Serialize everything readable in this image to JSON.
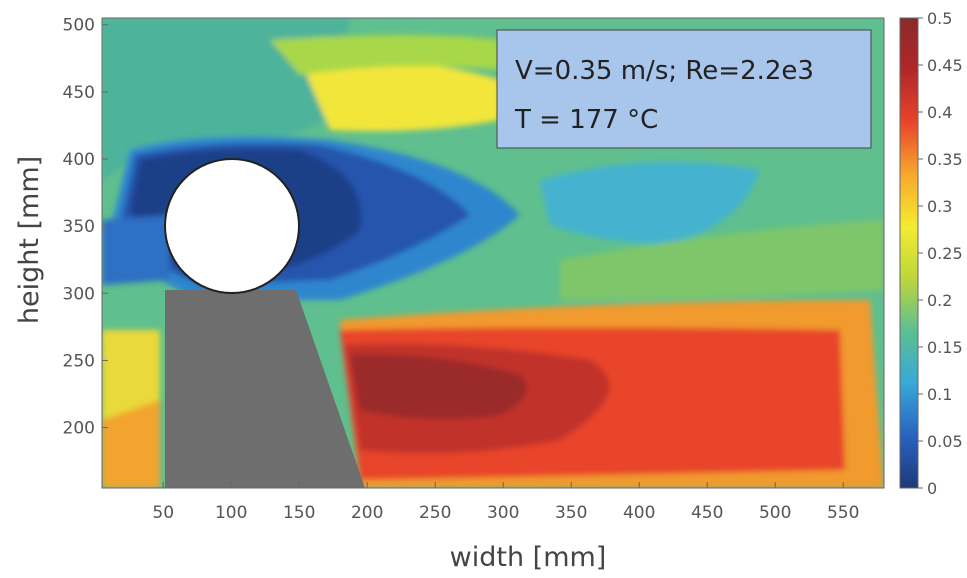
{
  "chart_data": {
    "type": "heatmap",
    "xlabel": "width [mm]",
    "ylabel": "height [mm]",
    "xlim": [
      5,
      580
    ],
    "ylim": [
      155,
      505
    ],
    "x_ticks": [
      50,
      100,
      150,
      200,
      250,
      300,
      350,
      400,
      450,
      500,
      550
    ],
    "y_ticks": [
      200,
      250,
      300,
      350,
      400,
      450,
      500
    ],
    "colorbar": {
      "range": [
        0,
        0.5
      ],
      "ticks": [
        0,
        0.05,
        0.1,
        0.15,
        0.2,
        0.25,
        0.3,
        0.35,
        0.4,
        0.45,
        0.5
      ],
      "colormap": [
        "#1e3a78",
        "#2a62c0",
        "#38a8d8",
        "#5bbf92",
        "#bcd63c",
        "#f4ec30",
        "#f7a92c",
        "#e8452a",
        "#b1262a",
        "#8a2a2a"
      ]
    },
    "annotation": {
      "line1": "V=0.35 m/s; Re=2.2e3",
      "line2": "T = 177 °C"
    },
    "field_regions": [
      {
        "region": "wake behind cylinder (upper)",
        "x": [
          60,
          300
        ],
        "y": [
          300,
          410
        ],
        "value": 0.05
      },
      {
        "region": "jet below cylinder",
        "x": [
          200,
          560
        ],
        "y": [
          160,
          300
        ],
        "value": 0.4
      },
      {
        "region": "jet core",
        "x": [
          220,
          340
        ],
        "y": [
          215,
          260
        ],
        "value": 0.45
      },
      {
        "region": "upper shear layer",
        "x": [
          300,
          450
        ],
        "y": [
          430,
          480
        ],
        "value": 0.3
      },
      {
        "region": "far wake",
        "x": [
          350,
          580
        ],
        "y": [
          300,
          420
        ],
        "value": 0.15
      },
      {
        "region": "background",
        "x": [
          5,
          580
        ],
        "y": [
          155,
          505
        ],
        "value": 0.22
      }
    ],
    "obstacle": {
      "cylinder_center": [
        100,
        350
      ],
      "cylinder_radius": 50
    }
  }
}
